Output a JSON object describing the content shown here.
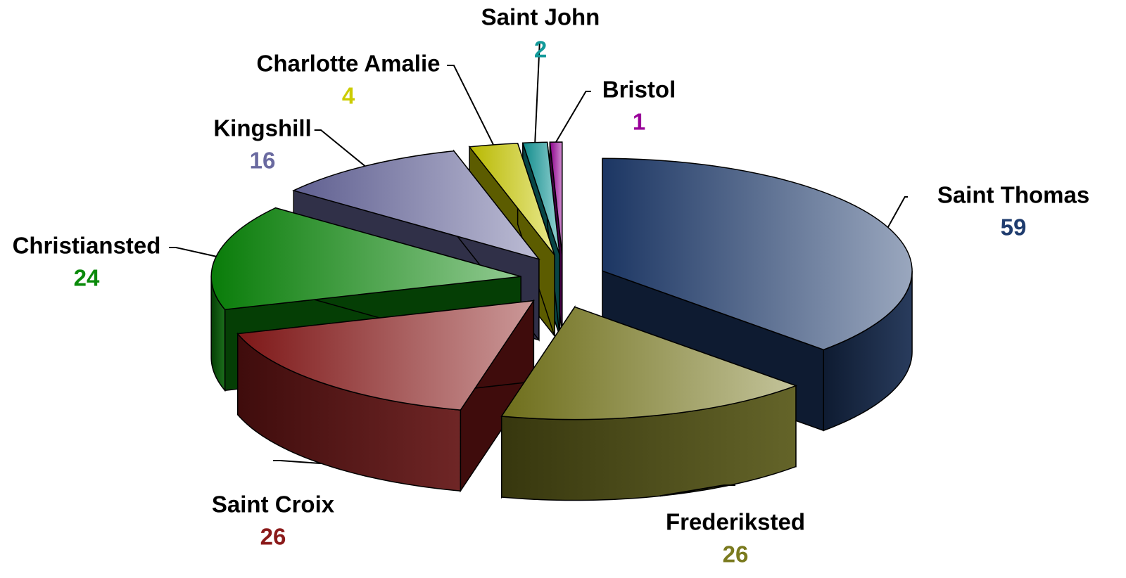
{
  "chart_data": {
    "type": "pie",
    "categories": [
      "Saint Thomas",
      "Frederiksted",
      "Saint Croix",
      "Christiansted",
      "Kingshill",
      "Charlotte Amalie",
      "Saint John",
      "Bristol"
    ],
    "values": [
      59,
      26,
      26,
      24,
      16,
      4,
      2,
      1
    ],
    "colors": [
      "#1f3c6e",
      "#7a7a1e",
      "#8b1a1a",
      "#0a8a0a",
      "#6a6aa0",
      "#cccc00",
      "#129a9a",
      "#990099"
    ]
  }
}
